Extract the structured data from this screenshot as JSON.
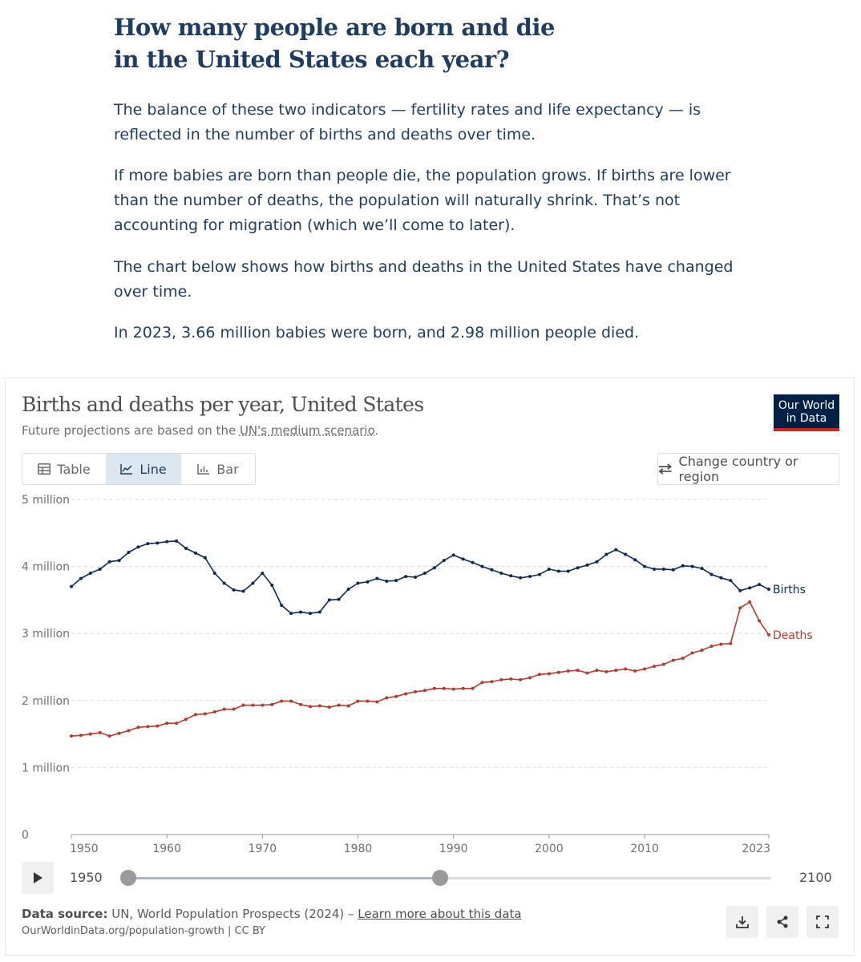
{
  "article": {
    "title_line1": "How many people are born and die",
    "title_line2": "in the United States each year?",
    "paragraphs": [
      "The balance of these two indicators — fertility rates and life expectancy — is reflected in the number of births and deaths over time.",
      "If more babies are born than people die, the population grows. If births are lower than the number of deaths, the population will naturally shrink. That’s not accounting for migration (which we’ll come to later).",
      "The chart below shows how births and deaths in the United States have changed over time.",
      "In 2023, 3.66 million babies were born, and 2.98 million people died."
    ]
  },
  "chart_card": {
    "title": "Births and deaths per year, United States",
    "subtitle_prefix": "Future projections are based on the ",
    "subtitle_link": "UN's medium scenario",
    "subtitle_suffix": ".",
    "logo_line1": "Our World",
    "logo_line2": "in Data",
    "tabs": {
      "table": "Table",
      "line": "Line",
      "bar": "Bar",
      "active": "Line"
    },
    "change_button": "Change country or region",
    "timeline": {
      "start": "1950",
      "end": "2100",
      "range_start": 1950,
      "range_end": 2023
    },
    "footer": {
      "source_label": "Data source:",
      "source_text": " UN, World Population Prospects (2024) – ",
      "learn_more": "Learn more about this data",
      "url": "OurWorldinData.org/population-growth | CC BY"
    },
    "icons": {
      "table_tab": "table-icon",
      "line_tab": "line-chart-icon",
      "bar_tab": "bar-chart-icon",
      "change": "swap-arrows-icon",
      "play": "play-icon",
      "download": "download-icon",
      "share": "share-icon",
      "fullscreen": "fullscreen-icon"
    }
  },
  "chart_data": {
    "type": "line",
    "title": "Births and deaths per year, United States",
    "ylim": [
      0,
      5000000
    ],
    "yticks": [
      {
        "value": 0,
        "label": "0"
      },
      {
        "value": 1000000,
        "label": "1 million"
      },
      {
        "value": 2000000,
        "label": "2 million"
      },
      {
        "value": 3000000,
        "label": "3 million"
      },
      {
        "value": 4000000,
        "label": "4 million"
      },
      {
        "value": 5000000,
        "label": "5 million"
      }
    ],
    "xlim": [
      1950,
      2023
    ],
    "xticks": [
      1950,
      1960,
      1970,
      1980,
      1990,
      2000,
      2010,
      2023
    ],
    "grid": "horizontal-dashed",
    "x": [
      1950,
      1951,
      1952,
      1953,
      1954,
      1955,
      1956,
      1957,
      1958,
      1959,
      1960,
      1961,
      1962,
      1963,
      1964,
      1965,
      1966,
      1967,
      1968,
      1969,
      1970,
      1971,
      1972,
      1973,
      1974,
      1975,
      1976,
      1977,
      1978,
      1979,
      1980,
      1981,
      1982,
      1983,
      1984,
      1985,
      1986,
      1987,
      1988,
      1989,
      1990,
      1991,
      1992,
      1993,
      1994,
      1995,
      1996,
      1997,
      1998,
      1999,
      2000,
      2001,
      2002,
      2003,
      2004,
      2005,
      2006,
      2007,
      2008,
      2009,
      2010,
      2011,
      2012,
      2013,
      2014,
      2015,
      2016,
      2017,
      2018,
      2019,
      2020,
      2021,
      2022,
      2023
    ],
    "series": [
      {
        "name": "Births",
        "color": "#0b2a54",
        "values": [
          3700000,
          3820000,
          3900000,
          3960000,
          4070000,
          4090000,
          4210000,
          4290000,
          4340000,
          4350000,
          4370000,
          4380000,
          4270000,
          4200000,
          4130000,
          3900000,
          3750000,
          3650000,
          3630000,
          3750000,
          3900000,
          3720000,
          3420000,
          3300000,
          3320000,
          3300000,
          3320000,
          3500000,
          3510000,
          3660000,
          3750000,
          3770000,
          3820000,
          3780000,
          3790000,
          3850000,
          3840000,
          3900000,
          3980000,
          4090000,
          4170000,
          4110000,
          4060000,
          4000000,
          3950000,
          3900000,
          3860000,
          3830000,
          3850000,
          3880000,
          3960000,
          3930000,
          3930000,
          3980000,
          4020000,
          4070000,
          4180000,
          4250000,
          4180000,
          4100000,
          4000000,
          3960000,
          3960000,
          3950000,
          4010000,
          4000000,
          3970000,
          3880000,
          3830000,
          3790000,
          3640000,
          3680000,
          3730000,
          3660000
        ]
      },
      {
        "name": "Deaths",
        "color": "#b33b2e",
        "values": [
          1470000,
          1480000,
          1500000,
          1520000,
          1470000,
          1510000,
          1550000,
          1600000,
          1610000,
          1620000,
          1660000,
          1660000,
          1720000,
          1790000,
          1800000,
          1830000,
          1870000,
          1870000,
          1930000,
          1930000,
          1930000,
          1940000,
          1990000,
          1990000,
          1940000,
          1910000,
          1920000,
          1900000,
          1930000,
          1920000,
          1990000,
          1990000,
          1980000,
          2040000,
          2060000,
          2100000,
          2130000,
          2150000,
          2180000,
          2180000,
          2170000,
          2180000,
          2180000,
          2270000,
          2280000,
          2310000,
          2320000,
          2310000,
          2340000,
          2390000,
          2400000,
          2420000,
          2440000,
          2450000,
          2410000,
          2450000,
          2430000,
          2450000,
          2470000,
          2440000,
          2470000,
          2510000,
          2540000,
          2600000,
          2630000,
          2710000,
          2750000,
          2810000,
          2840000,
          2850000,
          3380000,
          3470000,
          3190000,
          2980000
        ]
      }
    ]
  }
}
